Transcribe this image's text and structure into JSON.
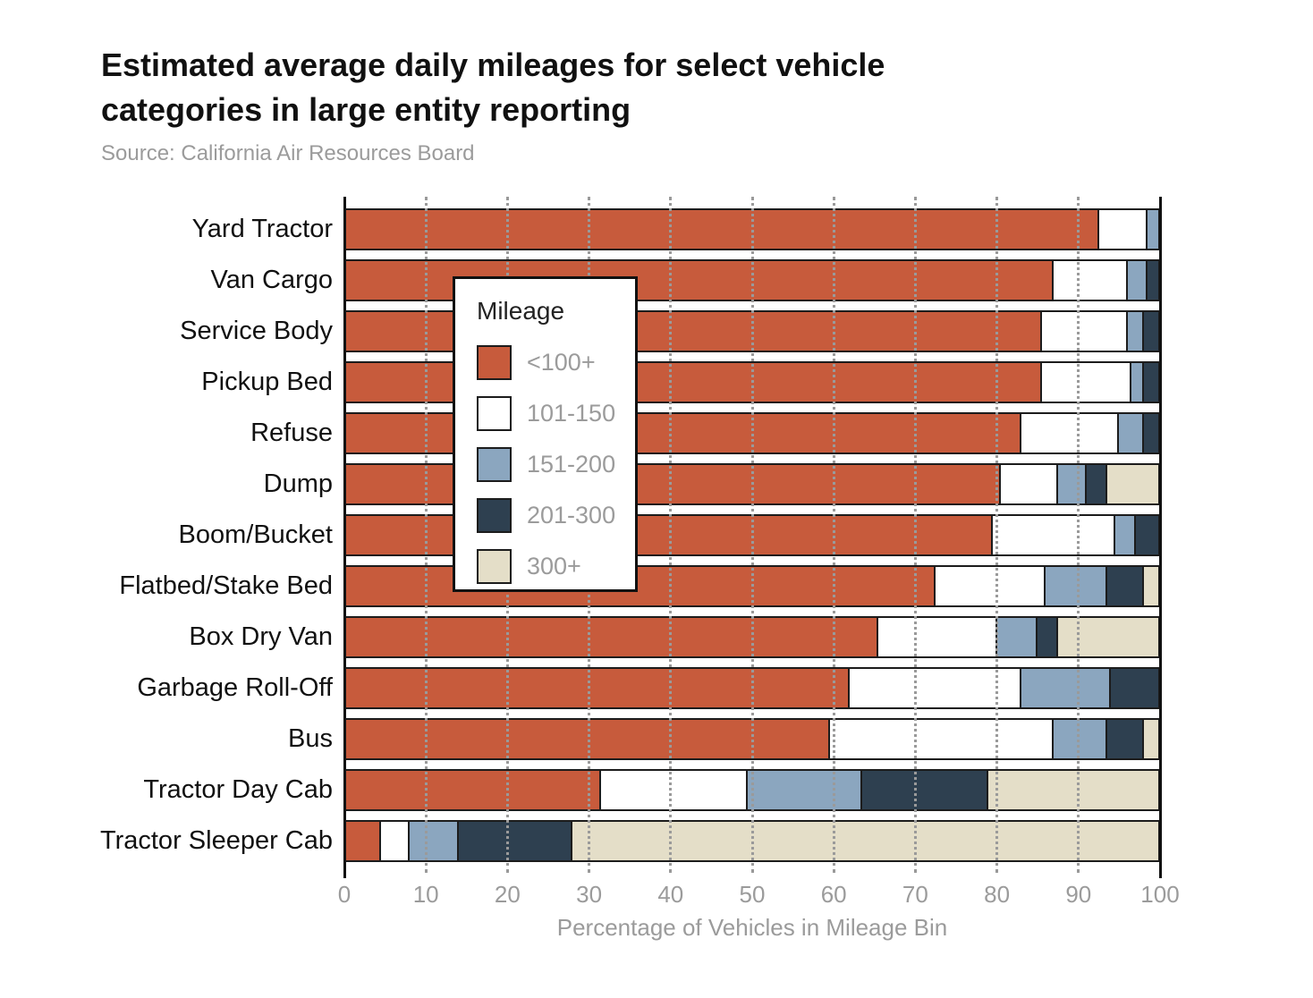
{
  "header": {
    "title": "Estimated average daily mileages for select vehicle categories in large entity reporting",
    "source": "Source: California Air Resources Board"
  },
  "legend": {
    "title": "Mileage"
  },
  "colors": {
    "bin_under_100": "#C75B3C",
    "bin_101_150": "#FFFFFF",
    "bin_151_200": "#8BA6BF",
    "bin_201_300": "#2E4050",
    "bin_300_plus": "#E4DEC8",
    "segment_border": "#1c1c1c",
    "grid": "#9a9a9a",
    "axis": "#111111",
    "muted_text": "#9b9b9b"
  },
  "chart_data": {
    "type": "bar",
    "stacked": true,
    "orientation": "horizontal",
    "title": "Estimated average daily mileages for select vehicle categories in large entity reporting",
    "subtitle": "Source: California Air Resources Board",
    "xlabel": "Percentage of Vehicles in Mileage Bin",
    "ylabel": "",
    "xlim": [
      0,
      100
    ],
    "xticks": [
      0,
      10,
      20,
      30,
      40,
      50,
      60,
      70,
      80,
      90,
      100
    ],
    "grid": "vertical dotted gridlines at 10-90 drawn over bars; solid black lines at 0 and 100",
    "legend_position": "overlay upper-left inside plot",
    "categories": [
      "Yard Tractor",
      "Van Cargo",
      "Service Body",
      "Pickup Bed",
      "Refuse",
      "Dump",
      "Boom/Bucket",
      "Flatbed/Stake Bed",
      "Box Dry Van",
      "Garbage Roll-Off",
      "Bus",
      "Tractor Day Cab",
      "Tractor Sleeper Cab"
    ],
    "series": [
      {
        "name": "<100+",
        "color": "#C75B3C",
        "values": [
          92.5,
          87.0,
          85.5,
          85.5,
          83.0,
          80.5,
          79.5,
          72.5,
          65.5,
          62.0,
          59.5,
          31.5,
          4.5
        ]
      },
      {
        "name": "101-150",
        "color": "#FFFFFF",
        "values": [
          6.0,
          9.0,
          10.5,
          11.0,
          12.0,
          7.0,
          15.0,
          13.5,
          14.5,
          21.0,
          27.5,
          18.0,
          3.5
        ]
      },
      {
        "name": "151-200",
        "color": "#8BA6BF",
        "values": [
          1.5,
          2.5,
          2.0,
          1.5,
          3.0,
          3.5,
          2.5,
          7.5,
          5.0,
          11.0,
          6.5,
          14.0,
          6.0
        ]
      },
      {
        "name": "201-300",
        "color": "#2E4050",
        "values": [
          0,
          1.5,
          2.0,
          2.0,
          2.0,
          2.5,
          3.0,
          4.5,
          2.5,
          6.0,
          4.5,
          15.5,
          14.0
        ]
      },
      {
        "name": "300+",
        "color": "#E4DEC8",
        "values": [
          0,
          0,
          0,
          0,
          0,
          6.5,
          0,
          2.0,
          12.5,
          0,
          2.0,
          21.0,
          72.0
        ]
      }
    ]
  }
}
